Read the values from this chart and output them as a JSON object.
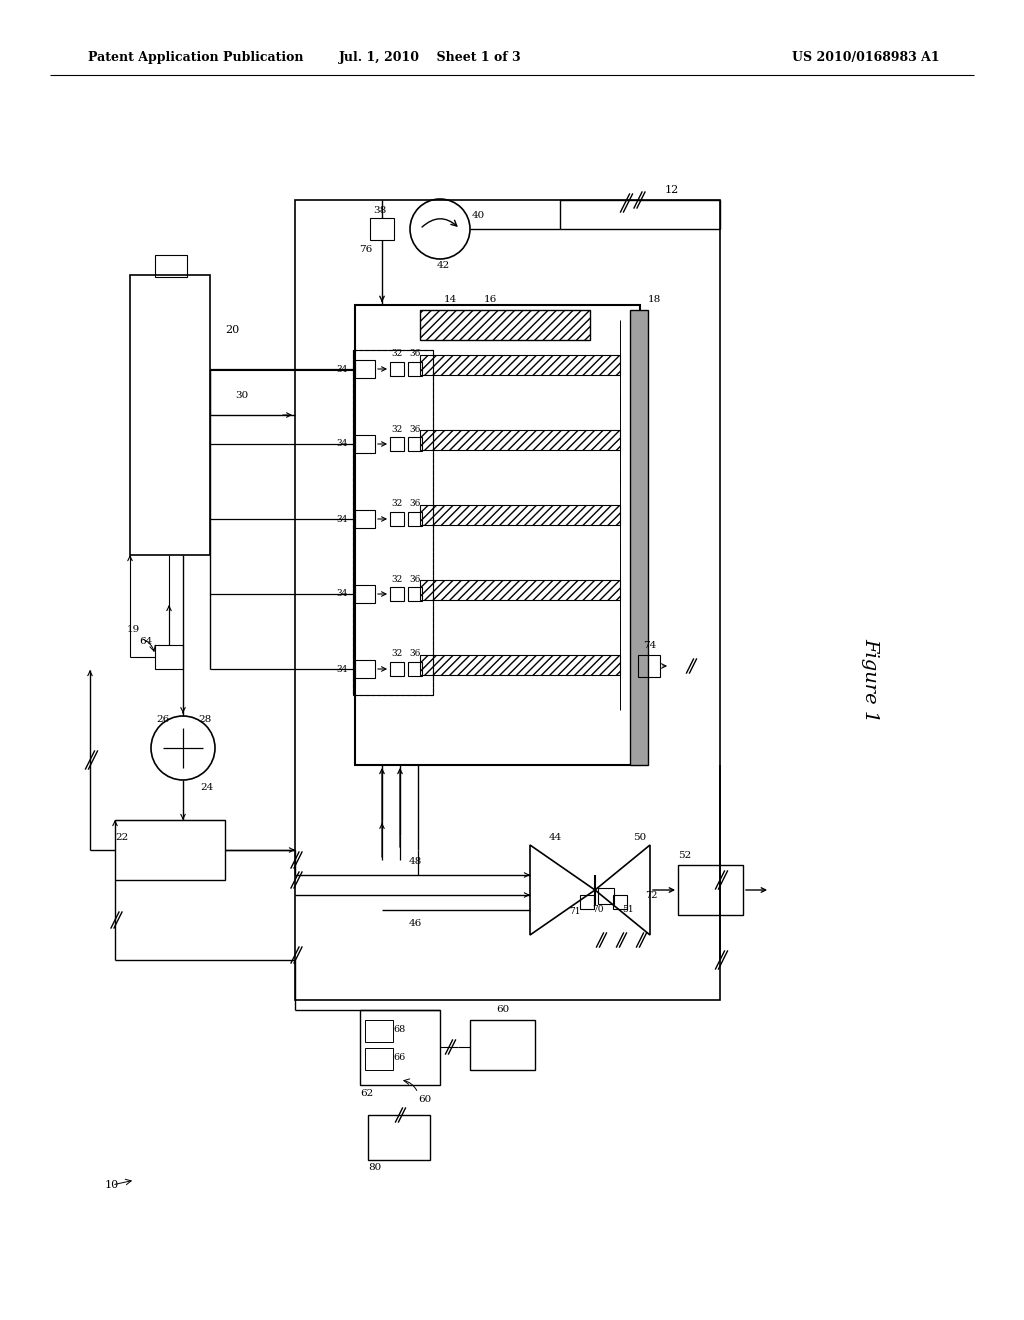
{
  "title_left": "Patent Application Publication",
  "title_mid": "Jul. 1, 2010    Sheet 1 of 3",
  "title_right": "US 2010/0168983 A1",
  "figure_label": "Figure 1",
  "background": "#ffffff",
  "line_color": "#000000"
}
